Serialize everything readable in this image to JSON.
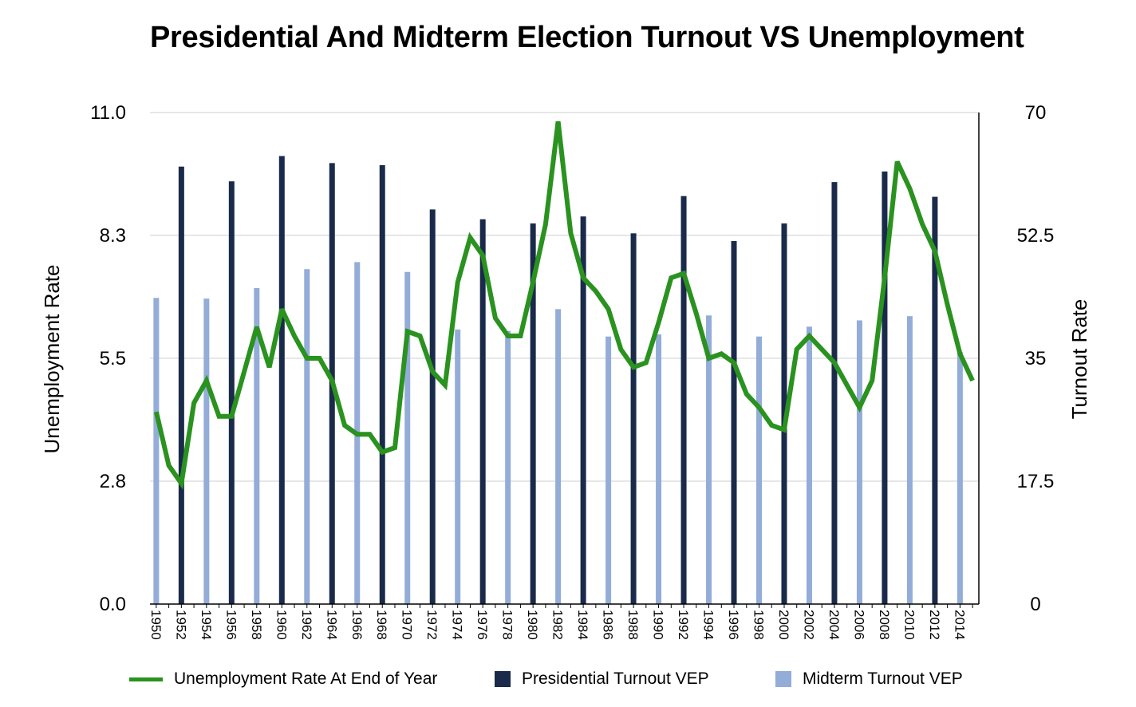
{
  "chart_data": {
    "type": "bar",
    "title": "Presidential And Midterm Election Turnout VS Unemployment",
    "ylabel_left": "Unemployment Rate",
    "ylabel_right": "Turnout Rate",
    "ylim_left": [
      0,
      11
    ],
    "ylim_right": [
      0,
      70
    ],
    "left_ticks": [
      "0.0",
      "2.8",
      "5.5",
      "8.3",
      "11.0"
    ],
    "right_ticks": [
      "0",
      "17.5",
      "35",
      "52.5",
      "70"
    ],
    "grid": true,
    "legend_position": "bottom",
    "x_tick_labels": [
      "1950",
      "1952",
      "1954",
      "1956",
      "1958",
      "1960",
      "1962",
      "1964",
      "1966",
      "1968",
      "1970",
      "1972",
      "1974",
      "1976",
      "1978",
      "1980",
      "1982",
      "1984",
      "1986",
      "1988",
      "1990",
      "1992",
      "1994",
      "1996",
      "1998",
      "2000",
      "2002",
      "2004",
      "2006",
      "2008",
      "2010",
      "2012",
      "2014"
    ],
    "years": [
      1950,
      1951,
      1952,
      1953,
      1954,
      1955,
      1956,
      1957,
      1958,
      1959,
      1960,
      1961,
      1962,
      1963,
      1964,
      1965,
      1966,
      1967,
      1968,
      1969,
      1970,
      1971,
      1972,
      1973,
      1974,
      1975,
      1976,
      1977,
      1978,
      1979,
      1980,
      1981,
      1982,
      1983,
      1984,
      1985,
      1986,
      1987,
      1988,
      1989,
      1990,
      1991,
      1992,
      1993,
      1994,
      1995,
      1996,
      1997,
      1998,
      1999,
      2000,
      2001,
      2002,
      2003,
      2004,
      2005,
      2006,
      2007,
      2008,
      2009,
      2010,
      2011,
      2012,
      2013,
      2014,
      2015
    ],
    "series": [
      {
        "name": "Unemployment Rate At End of Year",
        "kind": "line",
        "axis": "left",
        "color": "#2a921f",
        "x": [
          1950,
          1951,
          1952,
          1953,
          1954,
          1955,
          1956,
          1957,
          1958,
          1959,
          1960,
          1961,
          1962,
          1963,
          1964,
          1965,
          1966,
          1967,
          1968,
          1969,
          1970,
          1971,
          1972,
          1973,
          1974,
          1975,
          1976,
          1977,
          1978,
          1979,
          1980,
          1981,
          1982,
          1983,
          1984,
          1985,
          1986,
          1987,
          1988,
          1989,
          1990,
          1991,
          1992,
          1993,
          1994,
          1995,
          1996,
          1997,
          1998,
          1999,
          2000,
          2001,
          2002,
          2003,
          2004,
          2005,
          2006,
          2007,
          2008,
          2009,
          2010,
          2011,
          2012,
          2013,
          2014,
          2015
        ],
        "values": [
          4.3,
          3.1,
          2.7,
          4.5,
          5.0,
          4.2,
          4.2,
          5.2,
          6.2,
          5.3,
          6.6,
          6.0,
          5.5,
          5.5,
          5.0,
          4.0,
          3.8,
          3.8,
          3.4,
          3.5,
          6.1,
          6.0,
          5.2,
          4.9,
          7.2,
          8.2,
          7.8,
          6.4,
          6.0,
          6.0,
          7.2,
          8.5,
          10.8,
          8.3,
          7.3,
          7.0,
          6.6,
          5.7,
          5.3,
          5.4,
          6.3,
          7.3,
          7.4,
          6.5,
          5.5,
          5.6,
          5.4,
          4.7,
          4.4,
          4.0,
          3.9,
          5.7,
          6.0,
          5.7,
          5.4,
          4.9,
          4.4,
          5.0,
          7.3,
          9.9,
          9.3,
          8.5,
          7.9,
          6.7,
          5.6,
          5.0
        ]
      },
      {
        "name": "Presidential Turnout VEP",
        "kind": "bar",
        "axis": "right",
        "color": "#1a2a4a",
        "x": [
          1952,
          1956,
          1960,
          1964,
          1968,
          1972,
          1976,
          1980,
          1984,
          1988,
          1992,
          1996,
          2000,
          2004,
          2008,
          2012
        ],
        "values": [
          62.3,
          60.2,
          63.8,
          62.8,
          62.5,
          56.2,
          54.8,
          54.2,
          55.2,
          52.8,
          58.1,
          51.7,
          54.2,
          60.1,
          61.6,
          58.0
        ]
      },
      {
        "name": "Midterm Turnout VEP",
        "kind": "bar",
        "axis": "right",
        "color": "#93acd8",
        "x": [
          1950,
          1954,
          1958,
          1962,
          1966,
          1970,
          1974,
          1978,
          1982,
          1986,
          1990,
          1994,
          1998,
          2002,
          2006,
          2010,
          2014
        ],
        "values": [
          43.6,
          43.5,
          45.0,
          47.7,
          48.7,
          47.3,
          39.1,
          38.9,
          42.0,
          38.1,
          38.4,
          41.1,
          38.1,
          39.5,
          40.4,
          41.0,
          35.9
        ]
      }
    ]
  }
}
